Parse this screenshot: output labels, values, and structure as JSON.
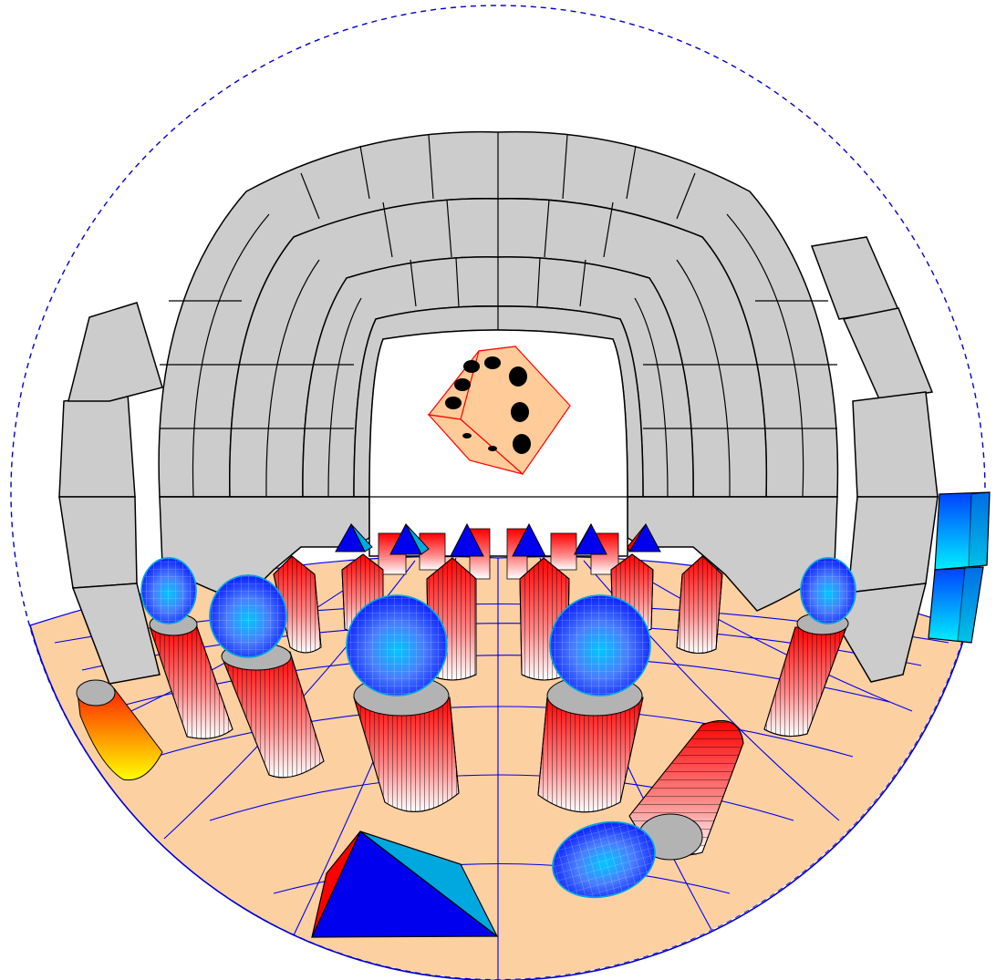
{
  "scene": {
    "projection": "fisheye",
    "colors": {
      "boundary": "#0000cc",
      "floor": "#fdd0a2",
      "floor_grid": "#0000ee",
      "wall_block": "#cccccc",
      "outline": "#000000",
      "die_face": "#ffcc99",
      "die_edge": "#ff0000",
      "die_pip": "#000000",
      "sphere_light": "#00c8ff",
      "sphere_dark": "#0a1eff",
      "cylinder_red": "#ff0000",
      "cylinder_light": "#ffffff",
      "cylinder_cap": "#b3b3b3",
      "cone_blue": "#0000ee",
      "cone_cyan": "#00a8e0",
      "cone_red": "#ff0000",
      "cone_yellow": "#ffff00",
      "box_cyan": "#00e5ff"
    },
    "objects": [
      {
        "name": "die",
        "icon": "die-icon",
        "visible_faces": [
          4,
          3,
          2
        ]
      },
      {
        "name": "tunnel-wall",
        "icon": "block-wall"
      },
      {
        "name": "spheres",
        "count": 6
      },
      {
        "name": "striped-cylinders",
        "count": 14
      },
      {
        "name": "blue-cones",
        "count": 6
      },
      {
        "name": "pyramid",
        "count": 1
      },
      {
        "name": "orange-cone",
        "count": 1
      },
      {
        "name": "cyan-boxes",
        "count": 2
      }
    ]
  }
}
